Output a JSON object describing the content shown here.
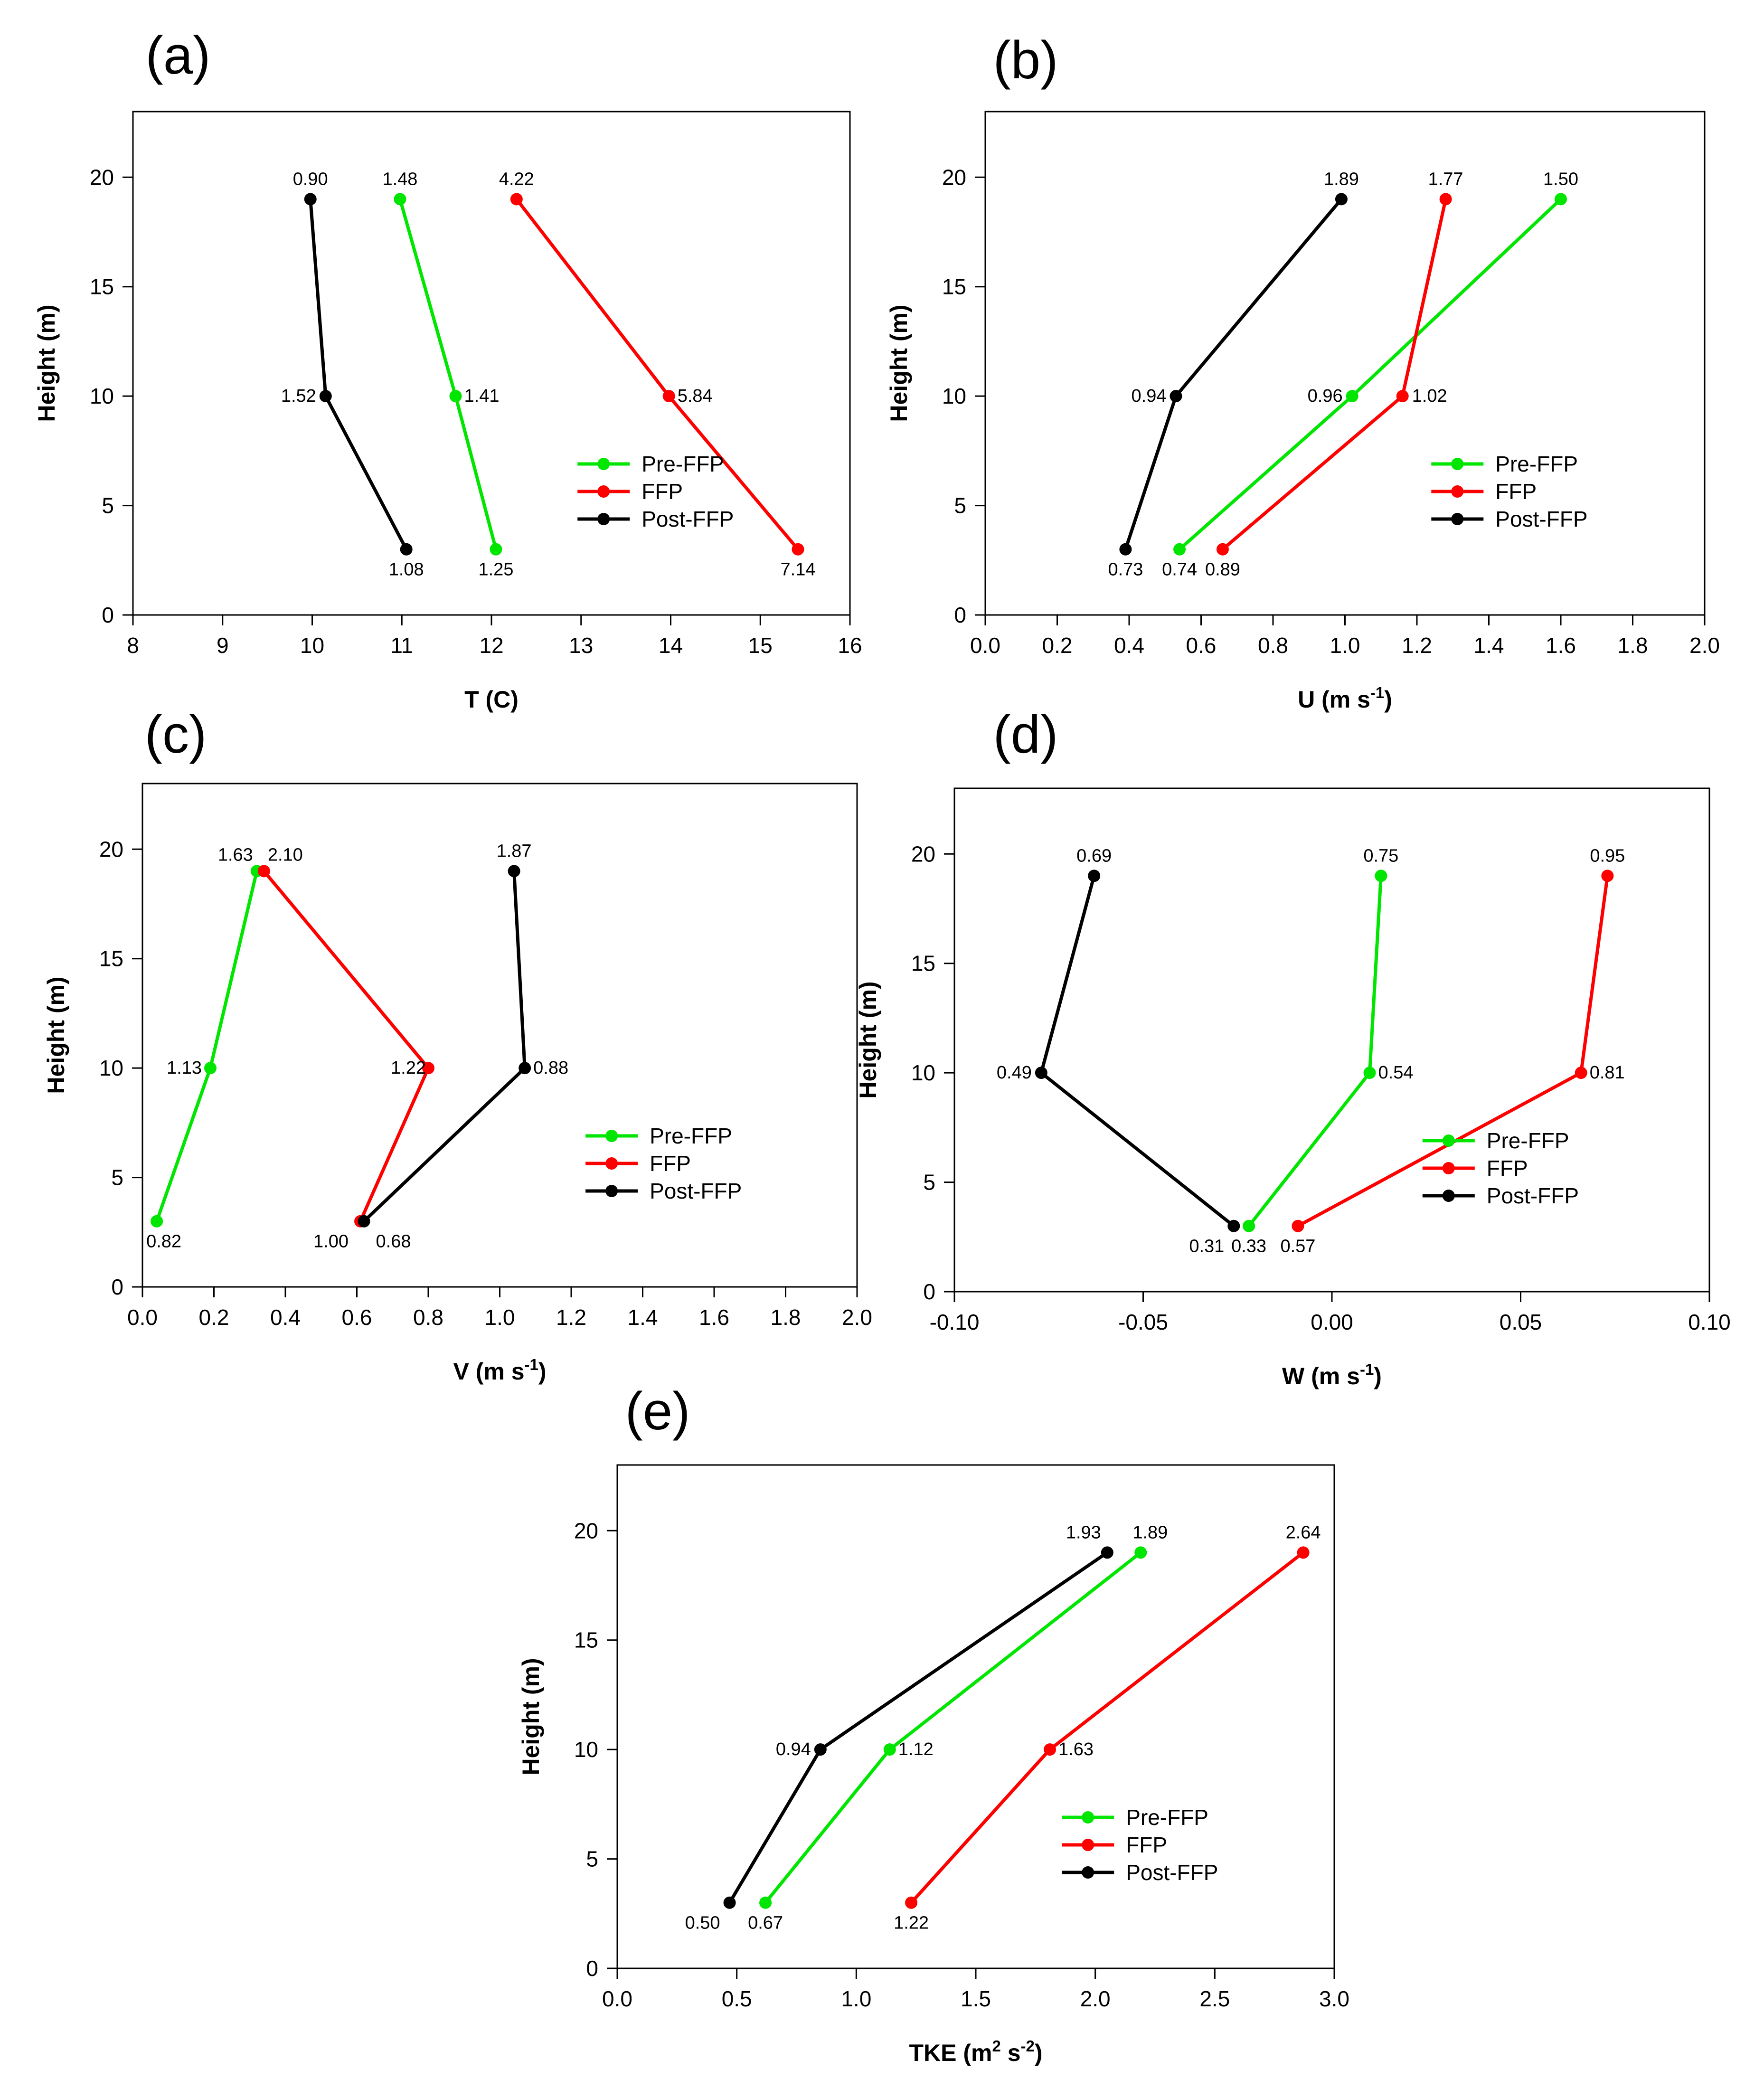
{
  "chart_data": [
    {
      "id": "a",
      "type": "line",
      "panel_label": "(a)",
      "xlabel": {
        "main": "T (C)",
        "sup1": "",
        "mid": "",
        "sup2": "",
        "end": ""
      },
      "ylabel": "Height (m)",
      "xlim": [
        8,
        16
      ],
      "xticks": [
        "8",
        "9",
        "10",
        "11",
        "12",
        "13",
        "14",
        "15",
        "16"
      ],
      "ylim": [
        0,
        23
      ],
      "yticks": [
        "0",
        "5",
        "10",
        "15",
        "20"
      ],
      "heights": [
        3,
        10,
        19
      ],
      "legend_position": "lower-right",
      "series": [
        {
          "name": "Pre-FFP",
          "color": "#00e600",
          "x": [
            12.05,
            11.6,
            10.98
          ],
          "labels": [
            "1.25",
            "1.41",
            "1.48"
          ]
        },
        {
          "name": "FFP",
          "color": "#ff0000",
          "x": [
            15.42,
            13.98,
            12.28
          ],
          "labels": [
            "7.14",
            "5.84",
            "4.22"
          ]
        },
        {
          "name": "Post-FFP",
          "color": "#000000",
          "x": [
            11.05,
            10.15,
            9.98
          ],
          "labels": [
            "1.08",
            "1.52",
            "0.90"
          ]
        }
      ]
    },
    {
      "id": "b",
      "type": "line",
      "panel_label": "(b)",
      "xlabel": {
        "main": "U (m s",
        "sup1": "-1",
        "mid": ")",
        "sup2": "",
        "end": ""
      },
      "ylabel": "Height (m)",
      "xlim": [
        0,
        2
      ],
      "xticks": [
        "0.0",
        "0.2",
        "0.4",
        "0.6",
        "0.8",
        "1.0",
        "1.2",
        "1.4",
        "1.6",
        "1.8",
        "2.0"
      ],
      "ylim": [
        0,
        23
      ],
      "yticks": [
        "0",
        "5",
        "10",
        "15",
        "20"
      ],
      "heights": [
        3,
        10,
        19
      ],
      "legend_position": "lower-right",
      "series": [
        {
          "name": "Pre-FFP",
          "color": "#00e600",
          "x": [
            0.54,
            1.02,
            1.6
          ],
          "labels": [
            "0.74",
            "0.96",
            "1.50"
          ]
        },
        {
          "name": "FFP",
          "color": "#ff0000",
          "x": [
            0.66,
            1.16,
            1.28
          ],
          "labels": [
            "0.89",
            "1.02",
            "1.77"
          ]
        },
        {
          "name": "Post-FFP",
          "color": "#000000",
          "x": [
            0.39,
            0.53,
            0.99
          ],
          "labels": [
            "0.73",
            "0.94",
            "1.89"
          ]
        }
      ]
    },
    {
      "id": "c",
      "type": "line",
      "panel_label": "(c)",
      "xlabel": {
        "main": "V (m s",
        "sup1": "-1",
        "mid": ")",
        "sup2": "",
        "end": ""
      },
      "ylabel": "Height (m)",
      "xlim": [
        0,
        2
      ],
      "xticks": [
        "0.0",
        "0.2",
        "0.4",
        "0.6",
        "0.8",
        "1.0",
        "1.2",
        "1.4",
        "1.6",
        "1.8",
        "2.0"
      ],
      "ylim": [
        0,
        23
      ],
      "yticks": [
        "0",
        "5",
        "10",
        "15",
        "20"
      ],
      "heights": [
        3,
        10,
        19
      ],
      "legend_position": "lower-right",
      "series": [
        {
          "name": "Pre-FFP",
          "color": "#00e600",
          "x": [
            0.04,
            0.19,
            0.32
          ],
          "labels": [
            "0.82",
            "1.13",
            "1.63"
          ]
        },
        {
          "name": "FFP",
          "color": "#ff0000",
          "x": [
            0.61,
            0.8,
            0.34
          ],
          "labels": [
            "1.00",
            "1.22",
            "2.10"
          ]
        },
        {
          "name": "Post-FFP",
          "color": "#000000",
          "x": [
            0.62,
            1.07,
            1.04
          ],
          "labels": [
            "0.68",
            "0.88",
            "1.87"
          ]
        }
      ]
    },
    {
      "id": "d",
      "type": "line",
      "panel_label": "(d)",
      "xlabel": {
        "main": "W (m s",
        "sup1": "-1",
        "mid": ")",
        "sup2": "",
        "end": ""
      },
      "ylabel": "Height (m)",
      "xlim": [
        -0.1,
        0.1
      ],
      "xticks": [
        "-0.10",
        "-0.05",
        "0.00",
        "0.05",
        "0.10"
      ],
      "ylim": [
        0,
        23
      ],
      "yticks": [
        "0",
        "5",
        "10",
        "15",
        "20"
      ],
      "heights": [
        3,
        10,
        19
      ],
      "legend_position": "lower-right",
      "series": [
        {
          "name": "Pre-FFP",
          "color": "#00e600",
          "x": [
            -0.022,
            0.01,
            0.013
          ],
          "labels": [
            "0.33",
            "0.54",
            "0.75"
          ]
        },
        {
          "name": "FFP",
          "color": "#ff0000",
          "x": [
            -0.009,
            0.066,
            0.073
          ],
          "labels": [
            "0.57",
            "0.81",
            "0.95"
          ]
        },
        {
          "name": "Post-FFP",
          "color": "#000000",
          "x": [
            -0.026,
            -0.077,
            -0.063
          ],
          "labels": [
            "0.31",
            "0.49",
            "0.69"
          ]
        }
      ]
    },
    {
      "id": "e",
      "type": "line",
      "panel_label": "(e)",
      "xlabel": {
        "main": "TKE (m",
        "sup1": "2",
        "mid": " s",
        "sup2": "-2",
        "end": ")"
      },
      "ylabel": "Height (m)",
      "xlim": [
        0,
        3
      ],
      "xticks": [
        "0.0",
        "0.5",
        "1.0",
        "1.5",
        "2.0",
        "2.5",
        "3.0"
      ],
      "ylim": [
        0,
        23
      ],
      "yticks": [
        "0",
        "5",
        "10",
        "15",
        "20"
      ],
      "heights": [
        3,
        10,
        19
      ],
      "legend_position": "lower-right",
      "series": [
        {
          "name": "Pre-FFP",
          "color": "#00e600",
          "x": [
            0.62,
            1.14,
            2.19
          ],
          "labels": [
            "0.67",
            "1.12",
            "1.89"
          ]
        },
        {
          "name": "FFP",
          "color": "#ff0000",
          "x": [
            1.23,
            1.81,
            2.87
          ],
          "labels": [
            "1.22",
            "1.63",
            "2.64"
          ]
        },
        {
          "name": "Post-FFP",
          "color": "#000000",
          "x": [
            0.47,
            0.85,
            2.05
          ],
          "labels": [
            "0.50",
            "0.94",
            "1.93"
          ]
        }
      ]
    }
  ]
}
